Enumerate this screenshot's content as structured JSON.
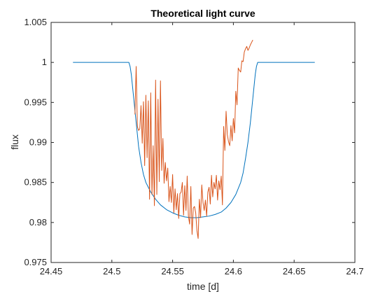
{
  "chart_data": {
    "type": "line",
    "title": "Theoretical light curve",
    "xlabel": "time [d]",
    "ylabel": "flux",
    "xlim": [
      24.45,
      24.7
    ],
    "ylim": [
      0.975,
      1.005
    ],
    "x_ticks": [
      "24.45",
      "24.5",
      "24.55",
      "24.6",
      "24.65",
      "24.7"
    ],
    "y_ticks": [
      "0.975",
      "0.98",
      "0.985",
      "0.99",
      "0.995",
      "1",
      "1.005"
    ],
    "grid": false,
    "legend": "none",
    "series": [
      {
        "color": "#0072BD",
        "x": [
          24.468,
          24.514,
          24.515,
          24.516,
          24.517,
          24.518,
          24.519,
          24.52,
          24.521,
          24.522,
          24.524,
          24.526,
          24.528,
          24.532,
          24.536,
          24.54,
          24.545,
          24.55,
          24.555,
          24.56,
          24.565,
          24.57,
          24.575,
          24.58,
          24.585,
          24.59,
          24.594,
          24.598,
          24.602,
          24.606,
          24.608,
          24.61,
          24.612,
          24.614,
          24.615,
          24.616,
          24.617,
          24.618,
          24.619,
          24.62,
          24.667
        ],
        "y": [
          1.0,
          1.0,
          0.9995,
          0.9985,
          0.997,
          0.9955,
          0.994,
          0.9925,
          0.991,
          0.9895,
          0.9875,
          0.986,
          0.985,
          0.9838,
          0.9829,
          0.9822,
          0.9816,
          0.9812,
          0.9809,
          0.9807,
          0.9806,
          0.9806,
          0.9807,
          0.9808,
          0.981,
          0.9813,
          0.9818,
          0.9825,
          0.9835,
          0.985,
          0.9862,
          0.988,
          0.99,
          0.9925,
          0.994,
          0.9955,
          0.997,
          0.9985,
          0.9995,
          1.0,
          1.0
        ]
      },
      {
        "color": "#D95319",
        "x": [
          24.519,
          24.52,
          24.521,
          24.522,
          24.523,
          24.524,
          24.525,
          24.526,
          24.527,
          24.528,
          24.529,
          24.53,
          24.531,
          24.532,
          24.533,
          24.534,
          24.535,
          24.536,
          24.537,
          24.538,
          24.539,
          24.54,
          24.541,
          24.542,
          24.543,
          24.544,
          24.545,
          24.546,
          24.547,
          24.548,
          24.549,
          24.55,
          24.551,
          24.552,
          24.553,
          24.554,
          24.555,
          24.556,
          24.557,
          24.558,
          24.559,
          24.56,
          24.561,
          24.562,
          24.563,
          24.564,
          24.565,
          24.566,
          24.567,
          24.568,
          24.569,
          24.57,
          24.571,
          24.572,
          24.573,
          24.574,
          24.575,
          24.576,
          24.577,
          24.578,
          24.579,
          24.58,
          24.581,
          24.582,
          24.583,
          24.584,
          24.585,
          24.586,
          24.587,
          24.588,
          24.589,
          24.59,
          24.591,
          24.592,
          24.593,
          24.594,
          24.595,
          24.596,
          24.597,
          24.598,
          24.599,
          24.6,
          24.601,
          24.602,
          24.603,
          24.604,
          24.605,
          24.606,
          24.607,
          24.608,
          24.609,
          24.61,
          24.611,
          24.612,
          24.613,
          24.614,
          24.615,
          24.616
        ],
        "y": [
          0.9935,
          0.9995,
          0.992,
          0.9915,
          0.9917,
          0.9946,
          0.9899,
          0.9951,
          0.9871,
          0.9959,
          0.9881,
          0.9952,
          0.9829,
          0.9962,
          0.9835,
          0.9896,
          0.9821,
          0.9978,
          0.9835,
          0.9954,
          0.9851,
          0.9977,
          0.9865,
          0.9905,
          0.9849,
          0.9875,
          0.9852,
          0.9868,
          0.9826,
          0.9845,
          0.9825,
          0.986,
          0.9812,
          0.9842,
          0.9816,
          0.9836,
          0.9805,
          0.9836,
          0.9838,
          0.985,
          0.9809,
          0.9846,
          0.9815,
          0.9858,
          0.9808,
          0.9798,
          0.9845,
          0.9785,
          0.9818,
          0.982,
          0.9812,
          0.979,
          0.978,
          0.9829,
          0.9806,
          0.9847,
          0.9825,
          0.9815,
          0.9828,
          0.9808,
          0.9838,
          0.9844,
          0.9823,
          0.9859,
          0.9832,
          0.985,
          0.9842,
          0.9859,
          0.9828,
          0.9852,
          0.9841,
          0.9858,
          0.9822,
          0.992,
          0.989,
          0.9939,
          0.991,
          0.9901,
          0.9896,
          0.9921,
          0.9902,
          0.993,
          0.9912,
          0.9964,
          0.9947,
          0.9993,
          0.999,
          0.9988,
          1.0002,
          1.0001,
          1.0013,
          1.0017,
          1.002,
          1.0015,
          1.0018,
          1.0022,
          1.0025,
          1.0028
        ]
      }
    ]
  }
}
